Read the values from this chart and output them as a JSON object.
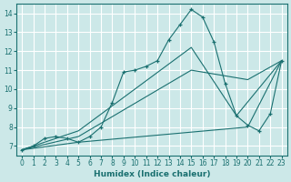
{
  "background_color": "#cce8e8",
  "grid_color": "#ffffff",
  "line_color": "#1a7070",
  "xlabel": "Humidex (Indice chaleur)",
  "ylim": [
    6.5,
    14.5
  ],
  "xlim": [
    -0.5,
    23.5
  ],
  "yticks": [
    7,
    8,
    9,
    10,
    11,
    12,
    13,
    14
  ],
  "xticks": [
    0,
    1,
    2,
    3,
    4,
    5,
    6,
    7,
    8,
    9,
    10,
    11,
    12,
    13,
    14,
    15,
    16,
    17,
    18,
    19,
    20,
    21,
    22,
    23
  ],
  "main_x": [
    0,
    1,
    2,
    3,
    4,
    5,
    6,
    7,
    8,
    9,
    10,
    11,
    12,
    13,
    14,
    15,
    16,
    17,
    18,
    19,
    20,
    21,
    22,
    23
  ],
  "main_y": [
    6.8,
    7.0,
    7.4,
    7.5,
    7.4,
    7.2,
    7.5,
    8.0,
    9.3,
    10.9,
    11.0,
    11.2,
    11.5,
    12.6,
    13.4,
    14.2,
    13.8,
    12.5,
    10.3,
    8.6,
    8.1,
    7.8,
    8.7,
    11.5
  ],
  "straight_lines": [
    {
      "x": [
        0,
        5,
        20,
        23
      ],
      "y": [
        6.8,
        7.2,
        8.0,
        11.5
      ]
    },
    {
      "x": [
        0,
        5,
        15,
        20,
        23
      ],
      "y": [
        6.8,
        7.5,
        11.0,
        10.5,
        11.5
      ]
    },
    {
      "x": [
        0,
        5,
        15,
        19,
        23
      ],
      "y": [
        6.8,
        7.8,
        12.2,
        8.6,
        11.5
      ]
    }
  ],
  "figsize": [
    3.2,
    2.0
  ],
  "dpi": 100
}
